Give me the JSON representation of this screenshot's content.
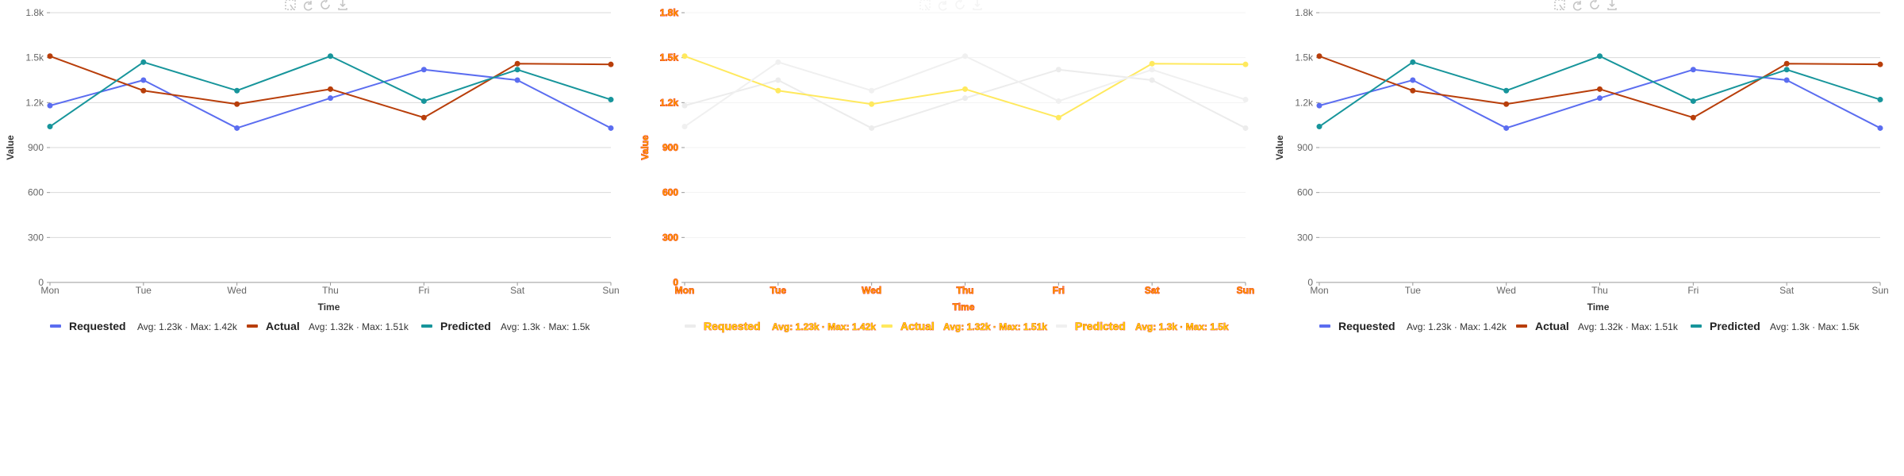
{
  "chart_data": [
    {
      "type": "line",
      "categories": [
        "Mon",
        "Tue",
        "Wed",
        "Thu",
        "Fri",
        "Sat",
        "Sun"
      ],
      "series": [
        {
          "name": "Requested",
          "color": "#5b6df0",
          "values": [
            1180,
            1350,
            1030,
            1230,
            1420,
            1350,
            1030
          ],
          "stats": "Avg: 1.23k · Max: 1.42k"
        },
        {
          "name": "Actual",
          "color": "#b83e0a",
          "values": [
            1510,
            1280,
            1190,
            1290,
            1100,
            1460,
            1455
          ],
          "stats": "Avg: 1.32k · Max: 1.51k"
        },
        {
          "name": "Predicted",
          "color": "#17959b",
          "values": [
            1040,
            1470,
            1280,
            1510,
            1210,
            1420,
            1220
          ],
          "stats": "Avg: 1.3k · Max: 1.5k"
        }
      ],
      "xlabel": "Time",
      "ylabel": "Value",
      "ylim": [
        0,
        1800
      ],
      "yticks": [
        "0",
        "300",
        "600",
        "900",
        "1.2k",
        "1.5k",
        "1.8k"
      ],
      "grid": true,
      "legend": "bottom"
    },
    {
      "type": "line",
      "categories": [
        "Mon",
        "Tue",
        "Wed",
        "Thu",
        "Fri",
        "Sat",
        "Sun"
      ],
      "series": [
        {
          "name": "Requested",
          "color": "#ececec",
          "values": [
            1180,
            1350,
            1030,
            1230,
            1420,
            1350,
            1030
          ],
          "stats": "Avg: 1.23k · Max: 1.42k"
        },
        {
          "name": "Actual",
          "color": "#ffe95e",
          "values": [
            1510,
            1280,
            1190,
            1290,
            1100,
            1460,
            1455
          ],
          "stats": "Avg: 1.32k · Max: 1.51k"
        },
        {
          "name": "Predicted",
          "color": "#f0f0f0",
          "values": [
            1040,
            1470,
            1280,
            1510,
            1210,
            1420,
            1220
          ],
          "stats": "Avg: 1.3k · Max: 1.5k"
        }
      ],
      "xlabel": "Time",
      "ylabel": "Value",
      "ylim": [
        0,
        1800
      ],
      "yticks": [
        "0",
        "300",
        "600",
        "900",
        "1.2k",
        "1.5k",
        "1.8k"
      ],
      "grid": true,
      "legend": "bottom"
    },
    {
      "type": "line",
      "categories": [
        "Mon",
        "Tue",
        "Wed",
        "Thu",
        "Fri",
        "Sat",
        "Sun"
      ],
      "series": [
        {
          "name": "Requested",
          "color": "#5b6df0",
          "values": [
            1180,
            1350,
            1030,
            1230,
            1420,
            1350,
            1030
          ],
          "stats": "Avg: 1.23k · Max: 1.42k"
        },
        {
          "name": "Actual",
          "color": "#b83e0a",
          "values": [
            1510,
            1280,
            1190,
            1290,
            1100,
            1460,
            1455
          ],
          "stats": "Avg: 1.32k · Max: 1.51k"
        },
        {
          "name": "Predicted",
          "color": "#17959b",
          "values": [
            1040,
            1470,
            1280,
            1510,
            1210,
            1420,
            1220
          ],
          "stats": "Avg: 1.3k · Max: 1.5k"
        }
      ],
      "xlabel": "Time",
      "ylabel": "Value",
      "ylim": [
        0,
        1800
      ],
      "yticks": [
        "0",
        "300",
        "600",
        "900",
        "1.2k",
        "1.5k",
        "1.8k"
      ],
      "grid": true,
      "legend": "bottom"
    }
  ],
  "toolbar": {
    "icons": [
      "zoom-select-icon",
      "undo-icon",
      "reset-icon",
      "download-icon"
    ]
  }
}
